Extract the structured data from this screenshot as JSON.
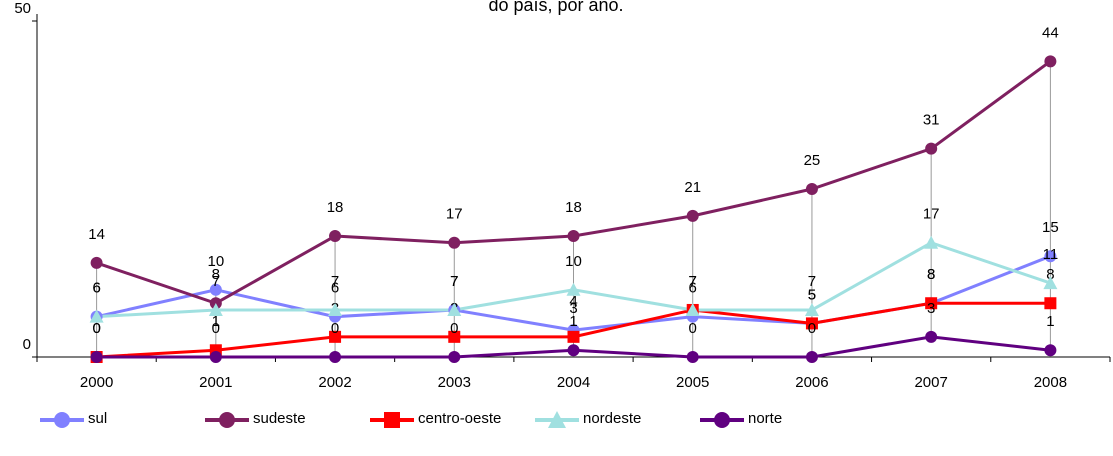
{
  "chart_data": {
    "type": "line",
    "title": "do país, por ano.",
    "categories": [
      "2000",
      "2001",
      "2002",
      "2003",
      "2004",
      "2005",
      "2006",
      "2007",
      "2008"
    ],
    "series": [
      {
        "name": "sul",
        "color": "#8080ff",
        "marker": "circle",
        "values": [
          6,
          10,
          6,
          7,
          4,
          6,
          5,
          8,
          15
        ]
      },
      {
        "name": "sudeste",
        "color": "#7f2060",
        "marker": "circle",
        "values": [
          14,
          8,
          18,
          17,
          18,
          21,
          25,
          31,
          44
        ]
      },
      {
        "name": "centro-oeste",
        "color": "#ff0000",
        "marker": "square",
        "values": [
          0,
          1,
          3,
          3,
          3,
          7,
          5,
          8,
          8
        ]
      },
      {
        "name": "nordeste",
        "color": "#a0e0e0",
        "marker": "triangle",
        "values": [
          6,
          7,
          7,
          7,
          10,
          7,
          7,
          17,
          11
        ]
      },
      {
        "name": "norte",
        "color": "#600080",
        "marker": "circle",
        "values": [
          0,
          0,
          0,
          0,
          1,
          0,
          0,
          3,
          1
        ]
      }
    ],
    "ylim": [
      0,
      50
    ],
    "yticks": [
      0,
      50
    ],
    "legend": "bottom"
  }
}
